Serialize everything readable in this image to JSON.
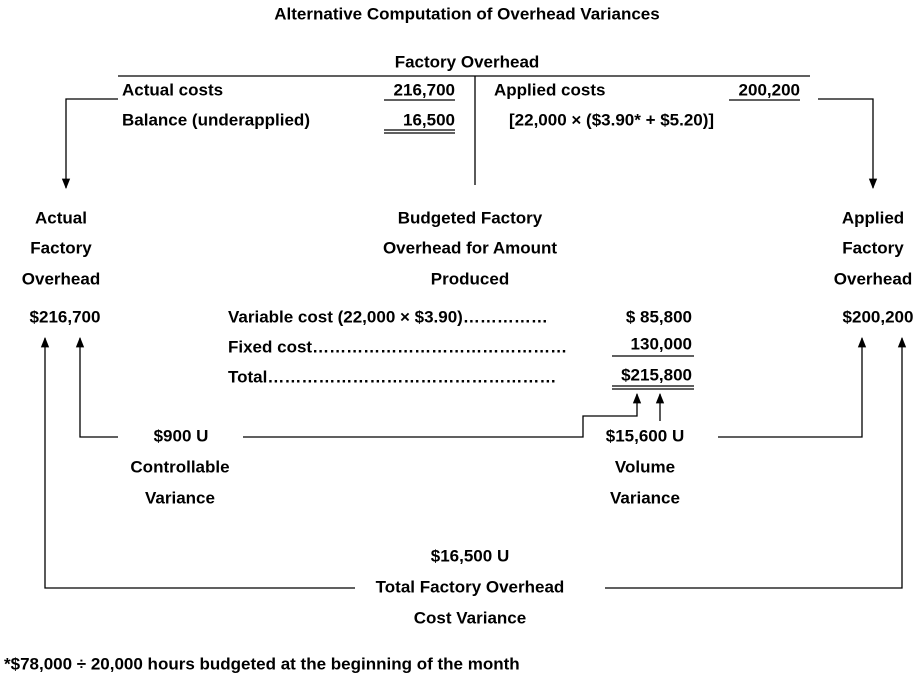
{
  "title": "Alternative Computation of Overhead Variances",
  "t_account": {
    "title": "Factory Overhead",
    "debit": [
      {
        "label": "Actual costs",
        "amount": "216,700"
      },
      {
        "label": "Balance (underapplied)",
        "amount": "16,500"
      }
    ],
    "credit": [
      {
        "label": "Applied costs",
        "amount": "200,200"
      },
      {
        "label": "[22,000 × ($3.90* + $5.20)]"
      }
    ]
  },
  "actual": {
    "label": [
      "Actual",
      "Factory",
      "Overhead"
    ],
    "amount": "$216,700"
  },
  "budgeted": {
    "label": [
      "Budgeted Factory",
      "Overhead for Amount",
      "Produced"
    ],
    "rows": [
      {
        "label": "Variable cost (22,000 × $3.90)……………",
        "amount": "$  85,800"
      },
      {
        "label": "Fixed cost………………………………………",
        "amount": "130,000"
      },
      {
        "label": "Total……………………………………………",
        "amount": "$215,800"
      }
    ]
  },
  "applied": {
    "label": [
      "Applied",
      "Factory",
      "Overhead"
    ],
    "amount": "$200,200"
  },
  "controllable": {
    "amount": "$900 U",
    "label": [
      "Controllable",
      "Variance"
    ]
  },
  "volume": {
    "amount": "$15,600 U",
    "label": [
      "Volume",
      "Variance"
    ]
  },
  "total": {
    "amount": "$16,500 U",
    "label": [
      "Total Factory Overhead",
      "Cost Variance"
    ]
  },
  "footnote": "*$78,000 ÷ 20,000 hours budgeted at the beginning of the month"
}
